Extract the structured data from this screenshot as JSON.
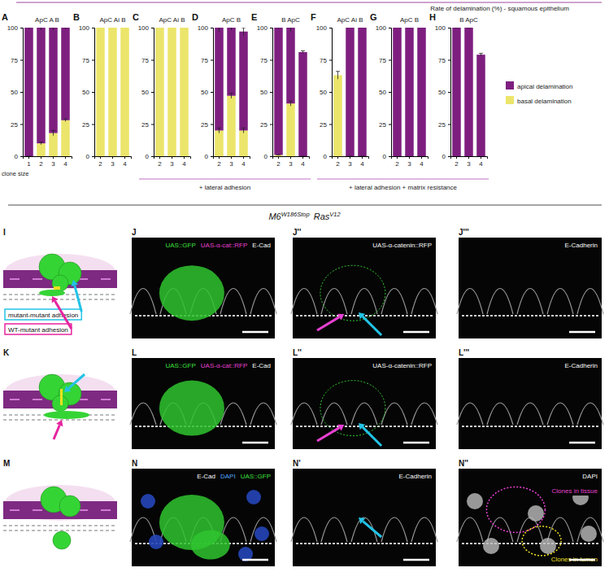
{
  "chart_data": [
    {
      "type": "bar",
      "stacked": true,
      "panel": "A",
      "title": "ApC A B",
      "xlabel": "clone size",
      "legend": "right",
      "categories": [
        1,
        2,
        3,
        4
      ],
      "series": [
        {
          "name": "basal delamination",
          "color": "#ece56b",
          "values": [
            0,
            10,
            18,
            28
          ],
          "errors": [
            0,
            1,
            2,
            1
          ]
        },
        {
          "name": "apical delamination",
          "color": "#7e1f80",
          "values": [
            100,
            90,
            82,
            72
          ],
          "errors": [
            1,
            2,
            2,
            1
          ]
        }
      ],
      "ylim": [
        0,
        100
      ],
      "yticks": [
        0,
        25,
        50,
        75,
        100
      ]
    },
    {
      "type": "bar",
      "stacked": true,
      "panel": "B",
      "title": "ApC Ai B",
      "categories": [
        2,
        3,
        4
      ],
      "series": [
        {
          "name": "basal delamination",
          "color": "#ece56b",
          "values": [
            100,
            100,
            100
          ]
        },
        {
          "name": "apical delamination",
          "color": "#7e1f80",
          "values": [
            0,
            0,
            0
          ]
        }
      ],
      "ylim": [
        0,
        100
      ],
      "yticks": [
        0,
        25,
        50,
        75,
        100
      ]
    },
    {
      "type": "bar",
      "stacked": true,
      "panel": "C",
      "title": "ApC Ai B",
      "categories": [
        2,
        3,
        4
      ],
      "series": [
        {
          "name": "basal delamination",
          "color": "#ece56b",
          "values": [
            100,
            100,
            100
          ]
        },
        {
          "name": "apical delamination",
          "color": "#7e1f80",
          "values": [
            0,
            0,
            0
          ]
        }
      ],
      "ylim": [
        0,
        100
      ],
      "yticks": [
        0,
        25,
        50,
        75,
        100
      ]
    },
    {
      "type": "bar",
      "stacked": true,
      "panel": "D",
      "title": "ApC B",
      "categories": [
        2,
        3,
        4
      ],
      "series": [
        {
          "name": "basal delamination",
          "color": "#ece56b",
          "values": [
            20,
            47,
            20
          ],
          "errors": [
            2,
            2,
            2
          ]
        },
        {
          "name": "apical delamination",
          "color": "#7e1f80",
          "values": [
            80,
            53,
            77
          ],
          "errors": [
            3,
            2,
            3
          ]
        }
      ],
      "ylim": [
        0,
        100
      ],
      "yticks": [
        0,
        25,
        50,
        75,
        100
      ]
    },
    {
      "type": "bar",
      "stacked": true,
      "panel": "E",
      "title": "B ApC",
      "categories": [
        2,
        3,
        4
      ],
      "series": [
        {
          "name": "basal delamination",
          "color": "#ece56b",
          "values": [
            1,
            41,
            0
          ],
          "errors": [
            0,
            2,
            0
          ]
        },
        {
          "name": "apical delamination",
          "color": "#7e1f80",
          "values": [
            99,
            59,
            81
          ],
          "errors": [
            1,
            3,
            1
          ]
        }
      ],
      "ylim": [
        0,
        100
      ],
      "yticks": [
        0,
        25,
        50,
        75,
        100
      ]
    },
    {
      "type": "bar",
      "stacked": true,
      "panel": "F",
      "title": "ApC Ai B",
      "categories": [
        2,
        3,
        4
      ],
      "series": [
        {
          "name": "basal delamination",
          "color": "#ece56b",
          "values": [
            63,
            0,
            0
          ],
          "errors": [
            3,
            0,
            0
          ]
        },
        {
          "name": "apical delamination",
          "color": "#7e1f80",
          "values": [
            0,
            100,
            100
          ]
        }
      ],
      "ylim": [
        0,
        100
      ],
      "yticks": [
        0,
        25,
        50,
        75,
        100
      ]
    },
    {
      "type": "bar",
      "stacked": true,
      "panel": "G",
      "title": "ApC B",
      "categories": [
        2,
        3,
        4
      ],
      "series": [
        {
          "name": "basal delamination",
          "color": "#ece56b",
          "values": [
            0,
            0,
            0
          ]
        },
        {
          "name": "apical delamination",
          "color": "#7e1f80",
          "values": [
            100,
            100,
            100
          ]
        }
      ],
      "ylim": [
        0,
        100
      ],
      "yticks": [
        0,
        25,
        50,
        75,
        100
      ]
    },
    {
      "type": "bar",
      "stacked": true,
      "panel": "H",
      "title": "B ApC",
      "categories": [
        2,
        3,
        4
      ],
      "series": [
        {
          "name": "basal delamination",
          "color": "#ece56b",
          "values": [
            0,
            0,
            0
          ]
        },
        {
          "name": "apical delamination",
          "color": "#7e1f80",
          "values": [
            100,
            100,
            79
          ],
          "errors": [
            0,
            0,
            1
          ]
        }
      ],
      "ylim": [
        0,
        100
      ],
      "yticks": [
        0,
        25,
        50,
        75,
        100
      ]
    }
  ],
  "figure": {
    "header": "Rate of delamination (%) - squamous epithelium",
    "annotations": [
      {
        "text": "+ lateral adhesion",
        "panels": [
          "C",
          "D",
          "E"
        ]
      },
      {
        "text": "+ lateral adhesion + matrix resistance",
        "panels": [
          "F",
          "G",
          "H"
        ]
      }
    ],
    "genotype": [
      {
        "text": "M6",
        "sup": "W186Stop"
      },
      {
        "text": "Ras",
        "sup": "V12"
      }
    ],
    "rows": [
      {
        "schematic": {
          "panel": "I",
          "labels": [
            {
              "text": "mutant-mutant adhesion",
              "color": "#22c3e6"
            },
            {
              "text": "WT-mutant adhesion",
              "color": "#e6249f"
            }
          ]
        },
        "images": [
          {
            "panel": "J",
            "labels": [
              {
                "text": "UAS::GFP",
                "color": "#3fe03f"
              },
              {
                "text": "UAS-α-cat::RFP",
                "color": "#e840d2"
              },
              {
                "text": "E-Cad",
                "color": "#ffffff"
              }
            ]
          },
          {
            "panel": "J''",
            "labels": [
              {
                "text": "UAS-α-catenin::RFP",
                "color": "#ffffff"
              }
            ]
          },
          {
            "panel": "J'''",
            "labels": [
              {
                "text": "E-Cadherin",
                "color": "#ffffff"
              }
            ]
          }
        ]
      },
      {
        "schematic": {
          "panel": "K"
        },
        "images": [
          {
            "panel": "L",
            "labels": [
              {
                "text": "UAS::GFP",
                "color": "#3fe03f"
              },
              {
                "text": "UAS-α-cat::RFP",
                "color": "#e840d2"
              },
              {
                "text": "E-Cad",
                "color": "#ffffff"
              }
            ]
          },
          {
            "panel": "L''",
            "labels": [
              {
                "text": "UAS-α-catenin::RFP",
                "color": "#ffffff"
              }
            ]
          },
          {
            "panel": "L'''",
            "labels": [
              {
                "text": "E-Cadherin",
                "color": "#ffffff"
              }
            ]
          }
        ]
      },
      {
        "schematic": {
          "panel": "M"
        },
        "images": [
          {
            "panel": "N",
            "labels": [
              {
                "text": "E-Cad",
                "color": "#ffffff"
              },
              {
                "text": "DAPI",
                "color": "#4fa8ff"
              },
              {
                "text": "UAS::GFP",
                "color": "#3fe03f"
              }
            ]
          },
          {
            "panel": "N'",
            "labels": [
              {
                "text": "E-Cadherin",
                "color": "#ffffff"
              }
            ]
          },
          {
            "panel": "N''",
            "labels": [
              {
                "text": "DAPI",
                "color": "#ffffff"
              }
            ],
            "regions": [
              {
                "text": "Clones in tissue",
                "color": "#e840d2"
              },
              {
                "text": "Clones in lumen",
                "color": "#f0e020"
              }
            ]
          }
        ]
      }
    ]
  }
}
